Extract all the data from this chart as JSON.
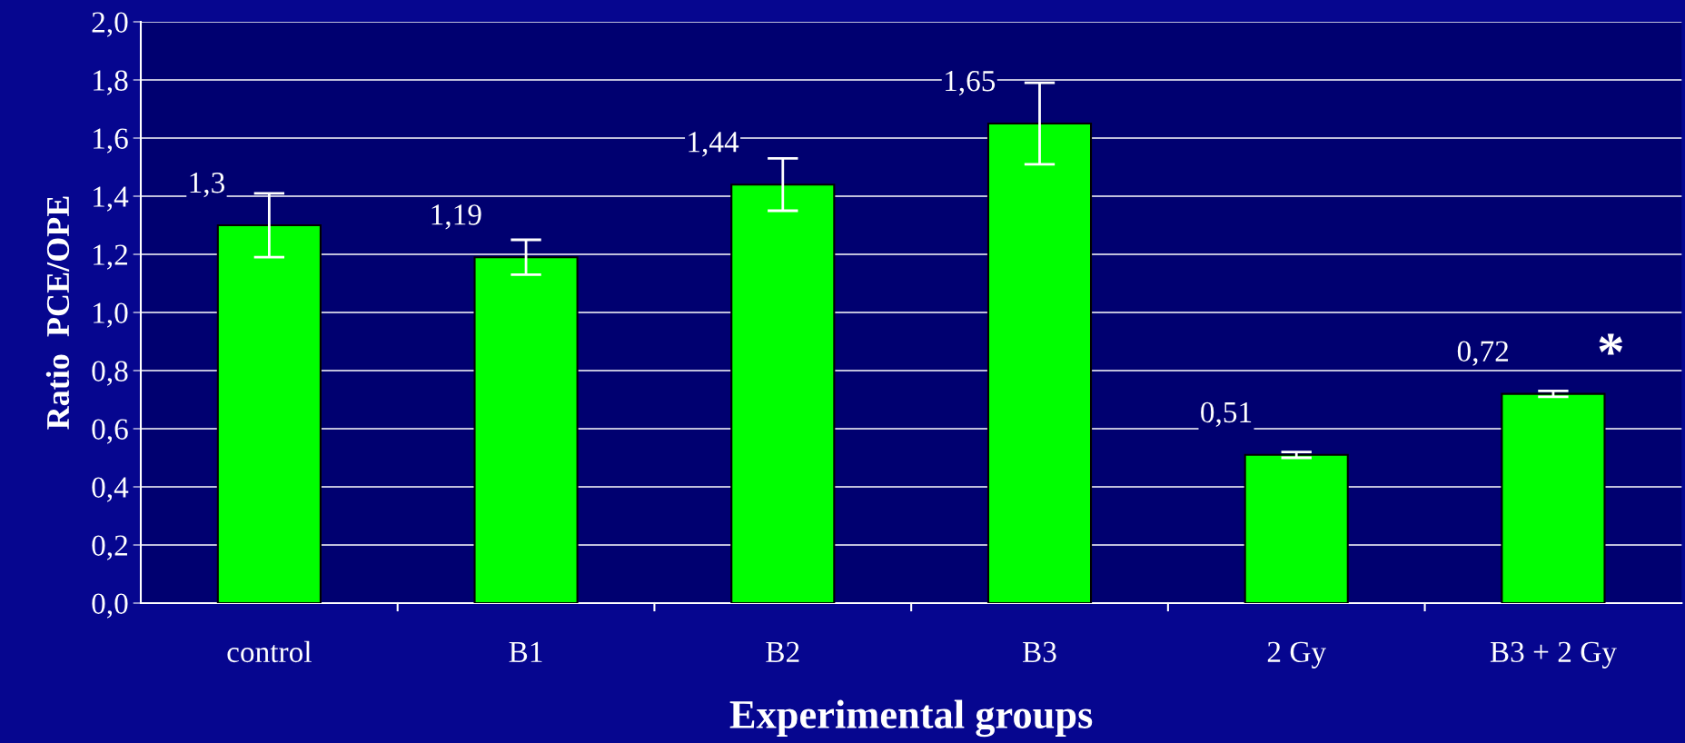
{
  "chart_data": {
    "type": "bar",
    "xlabel": "Experimental groups",
    "ylabel": "Ratio  PCE/OPE",
    "categories": [
      "control",
      "B1",
      "B2",
      "B3",
      "2 Gy",
      "B3 + 2 Gy"
    ],
    "values": [
      1.3,
      1.19,
      1.44,
      1.65,
      0.51,
      0.72
    ],
    "value_labels": [
      "1,3",
      "1,19",
      "1,44",
      "1,65",
      "0,51",
      "0,72"
    ],
    "errors": [
      0.11,
      0.06,
      0.09,
      0.14,
      0.01,
      0.01
    ],
    "color": "#00ff00",
    "ylim": [
      0,
      2.0
    ],
    "yticks": [
      {
        "value": 0,
        "label": "0,0"
      },
      {
        "value": 0.2,
        "label": "0,2"
      },
      {
        "value": 0.4,
        "label": "0,4"
      },
      {
        "value": 0.6,
        "label": "0,6"
      },
      {
        "value": 0.8,
        "label": "0,8"
      },
      {
        "value": 1.0,
        "label": "1,0"
      },
      {
        "value": 1.2,
        "label": "1,2"
      },
      {
        "value": 1.4,
        "label": "1,4"
      },
      {
        "value": 1.6,
        "label": "1,6"
      },
      {
        "value": 1.8,
        "label": "1,8"
      },
      {
        "value": 2.0,
        "label": "2,0"
      }
    ],
    "grid": "y",
    "annotations": [
      {
        "text": "*",
        "x": "B3 + 2 Gy",
        "y": 0.72
      }
    ]
  }
}
